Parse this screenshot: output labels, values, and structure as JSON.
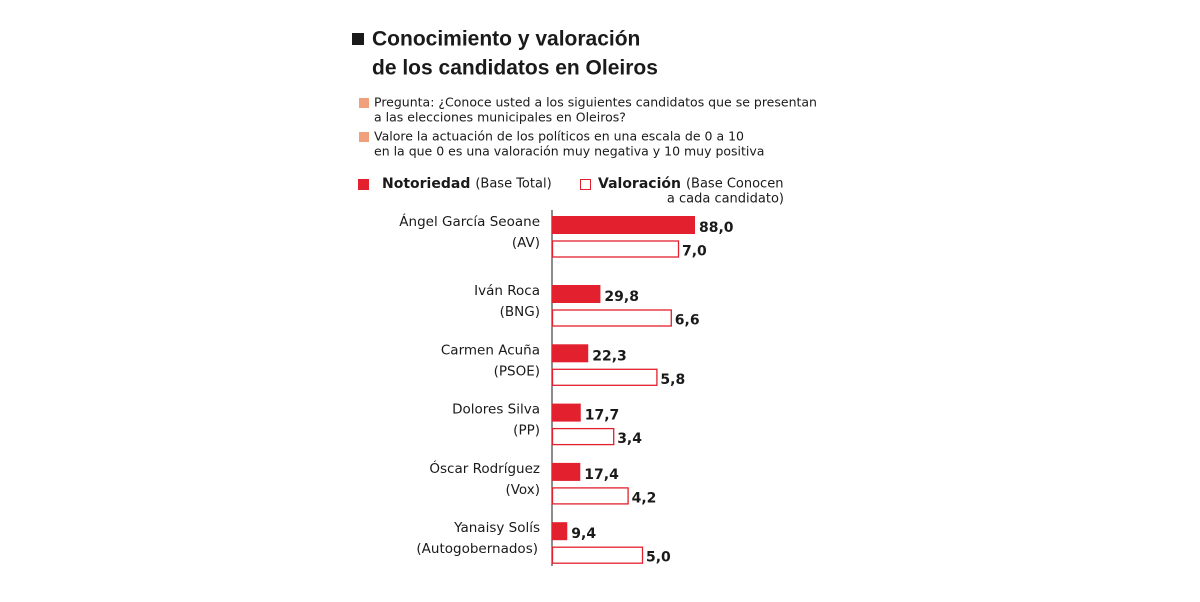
{
  "chart_data": {
    "type": "bar",
    "title": [
      "Conocimiento y valoración",
      "de los candidatos en Oleiros"
    ],
    "notes": [
      [
        "Pregunta: ¿Conoce usted a los siguientes candidatos que se presentan",
        "a las elecciones municipales en Oleiros?"
      ],
      [
        "Valore la actuación de los políticos en una escala de 0 a 10",
        "en la que 0 es una valoración muy negativa y 10 muy positiva"
      ]
    ],
    "categories": [
      "Ángel García Seoane",
      "Iván Roca",
      "Carmen Acuña",
      "Dolores Silva",
      "Óscar Rodríguez",
      "Yanaisy Solís"
    ],
    "parties": [
      "(AV)",
      "(BNG)",
      "(PSOE)",
      "(PP)",
      "(Vox)",
      "(Autogobernados)"
    ],
    "series": [
      {
        "name": "Notoriedad",
        "note": [
          "(Base Total)"
        ],
        "color": "#e3202e",
        "filled": true,
        "values": [
          88.0,
          29.8,
          22.3,
          17.7,
          17.4,
          9.4
        ],
        "value_labels": [
          "88,0",
          "29,8",
          "22,3",
          "17,7",
          "17,4",
          "9,4"
        ]
      },
      {
        "name": "Valoración",
        "note": [
          "(Base Conocen",
          "a cada candidato)"
        ],
        "color": "#e3202e",
        "filled": false,
        "values": [
          7.0,
          6.6,
          5.8,
          3.4,
          4.2,
          5.0
        ],
        "value_labels": [
          "7,0",
          "6,6",
          "5,8",
          "3,4",
          "4,2",
          "5,0"
        ]
      }
    ]
  }
}
